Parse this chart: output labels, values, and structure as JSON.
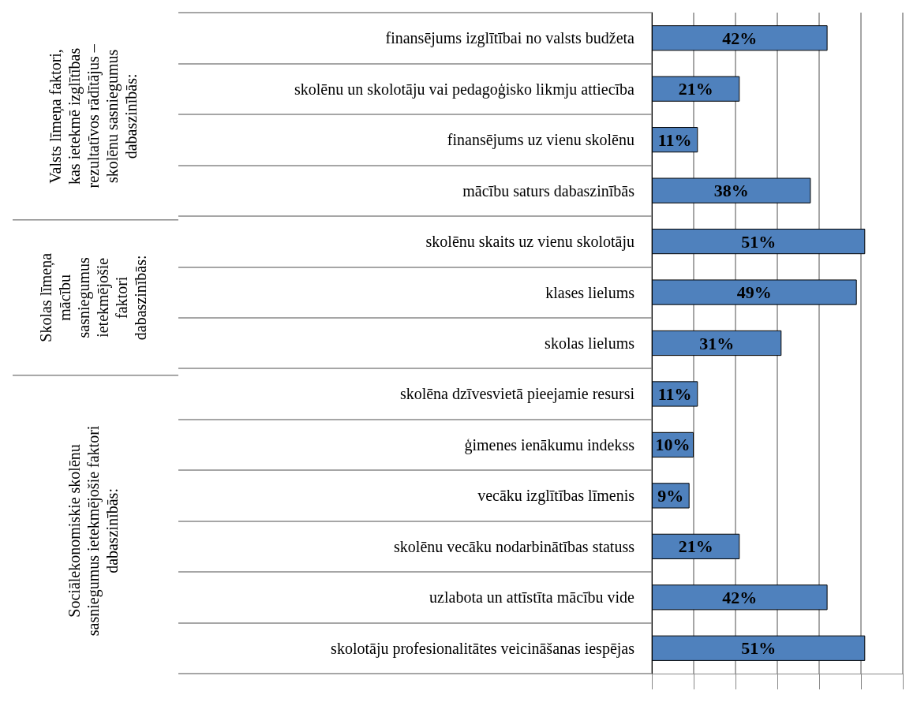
{
  "chart_data": {
    "type": "bar",
    "orientation": "horizontal",
    "categories": [
      "finansējums izglītībai no valsts budžeta",
      "skolēnu un skolotāju vai pedagoģisko likmju attiecība",
      "finansējums uz vienu skolēnu",
      "mācību saturs dabaszinībās",
      "skolēnu skaits uz vienu skolotāju",
      "klases lielums",
      "skolas lielums",
      "skolēna dzīvesvietā pieejamie resursi",
      "ģimenes ienākumu indekss",
      "vecāku izglītības līmenis",
      "skolēnu vecāku nodarbinātības statuss",
      "uzlabota un attīstīta mācību vide",
      "skolotāju profesionalitātes veicināšanas iespējas"
    ],
    "values": [
      42,
      21,
      11,
      38,
      51,
      49,
      31,
      11,
      10,
      9,
      21,
      42,
      51
    ],
    "value_labels": [
      "42%",
      "21%",
      "11%",
      "38%",
      "51%",
      "49%",
      "31%",
      "11%",
      "10%",
      "9%",
      "21%",
      "42%",
      "51%"
    ],
    "color": "#4f81bd",
    "xlim": [
      0,
      60
    ],
    "xticks": [
      {
        "value": 0,
        "label": null
      },
      {
        "value": 10,
        "label": null
      },
      {
        "value": 20,
        "label": null
      },
      {
        "value": 30,
        "label": null
      },
      {
        "value": 40,
        "label": null
      },
      {
        "value": 50,
        "label": null
      },
      {
        "value": 60,
        "label": null
      }
    ],
    "tick_labels": "y",
    "grid": "x",
    "annotations": [
      "Valsts līmeņa faktori,\nkas ietekmē izglītības\nrezultatīvos rādītājus –\nskolēnu sasniegumus\ndabaszinībās:",
      "Skolas līmeņa\nmācību\nsasniegumus\nietekmējošie\nfaktori\ndabaszinībās:",
      "Sociālekonomiskie skolēnu\nsasniegumus ietekmējošie faktori\ndabaszinībās:"
    ]
  }
}
